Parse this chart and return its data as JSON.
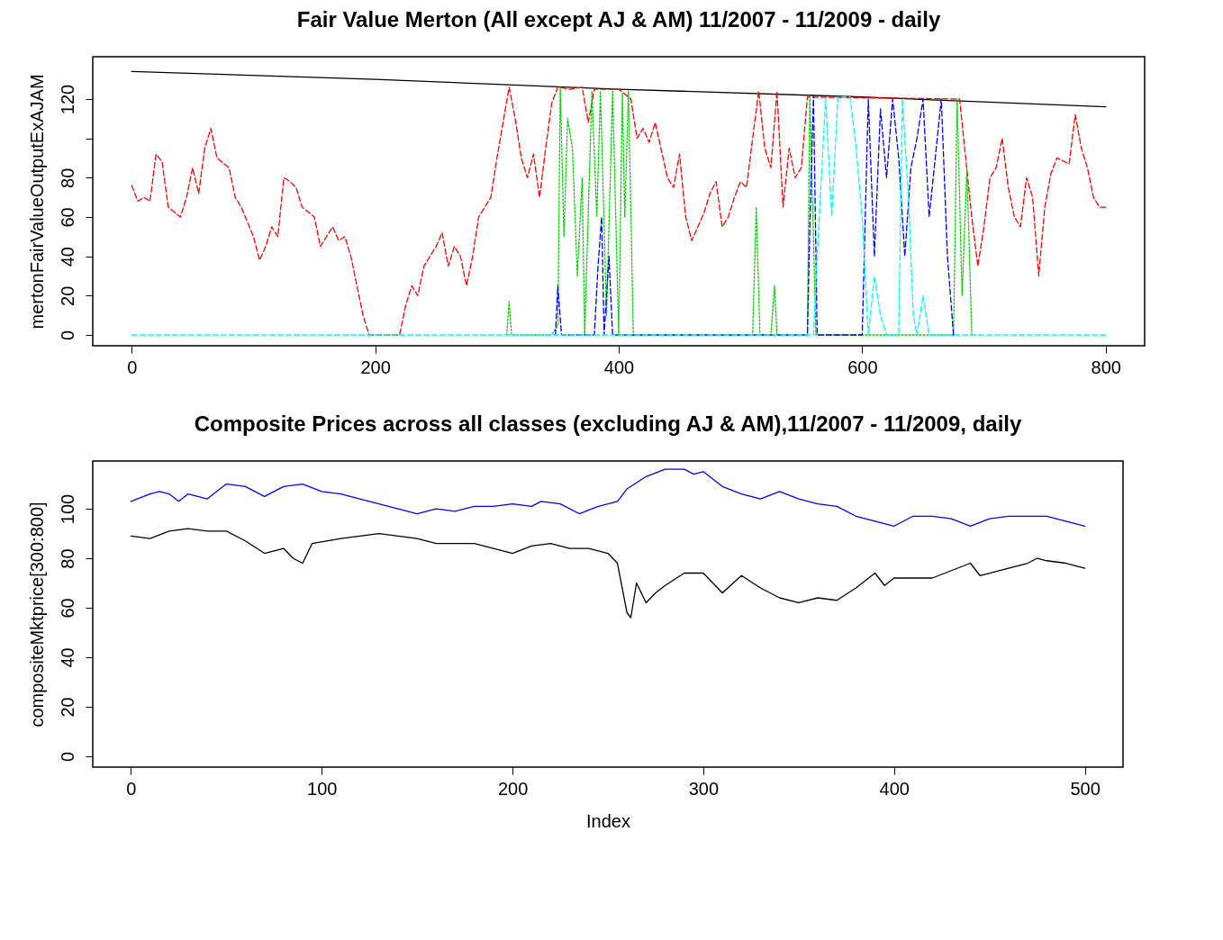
{
  "chart_data": [
    {
      "type": "line",
      "title": "Fair Value Merton (All except AJ & AM) 11/2007 - 11/2009 - daily",
      "ylabel": "mertonFairValueOutputExAJAM",
      "xlim": [
        -32,
        832
      ],
      "ylim": [
        -5.5,
        141.5
      ],
      "xticks": [
        0,
        200,
        400,
        600,
        800
      ],
      "yticks": [
        0,
        20,
        40,
        60,
        80,
        {
          "value": 100,
          "label": null
        },
        120
      ],
      "grid": false,
      "series": [
        {
          "color": "#000000",
          "line_style": "solid",
          "x": [
            0,
            200,
            400,
            600,
            800
          ],
          "values": [
            134,
            130,
            125,
            121,
            116
          ]
        },
        {
          "color": "#ff0000",
          "line_style": "dashed",
          "x": [
            0,
            5,
            10,
            15,
            20,
            25,
            30,
            40,
            45,
            50,
            55,
            60,
            65,
            70,
            80,
            85,
            90,
            100,
            105,
            110,
            115,
            120,
            125,
            130,
            135,
            140,
            150,
            155,
            160,
            165,
            170,
            175,
            180,
            185,
            190,
            195,
            220,
            225,
            230,
            235,
            240,
            250,
            255,
            260,
            265,
            270,
            275,
            280,
            285,
            290,
            295,
            300,
            310,
            315,
            320,
            325,
            330,
            335,
            340,
            345,
            350,
            360,
            370,
            375,
            380,
            400,
            410,
            415,
            420,
            425,
            430,
            440,
            445,
            450,
            455,
            460,
            465,
            470,
            475,
            480,
            485,
            490,
            495,
            500,
            505,
            510,
            515,
            520,
            525,
            530,
            535,
            540,
            545,
            550,
            555,
            680,
            685,
            690,
            695,
            700,
            705,
            710,
            715,
            720,
            725,
            730,
            735,
            740,
            745,
            750,
            755,
            760,
            770,
            775,
            780,
            785,
            790,
            795,
            800
          ],
          "values": [
            76,
            68,
            70,
            68,
            92,
            88,
            65,
            60,
            70,
            85,
            72,
            95,
            105,
            90,
            85,
            70,
            65,
            50,
            38,
            45,
            55,
            50,
            80,
            78,
            75,
            65,
            60,
            45,
            50,
            55,
            48,
            50,
            40,
            25,
            10,
            0,
            0,
            15,
            25,
            20,
            35,
            45,
            52,
            35,
            45,
            40,
            25,
            40,
            60,
            65,
            70,
            90,
            126,
            110,
            90,
            80,
            92,
            70,
            95,
            118,
            126,
            125,
            126,
            108,
            125,
            125,
            120,
            100,
            105,
            98,
            108,
            80,
            75,
            92,
            60,
            48,
            55,
            62,
            72,
            78,
            55,
            60,
            70,
            78,
            75,
            100,
            124,
            95,
            85,
            124,
            65,
            95,
            80,
            85,
            121,
            120,
            90,
            60,
            35,
            55,
            80,
            85,
            100,
            75,
            60,
            55,
            80,
            70,
            30,
            65,
            82,
            90,
            87,
            112,
            95,
            85,
            70,
            65,
            65
          ]
        },
        {
          "color": "#00cd00",
          "line_style": "dotted",
          "x": [
            308,
            310,
            312,
            345,
            350,
            352,
            355,
            358,
            362,
            366,
            370,
            372,
            378,
            382,
            385,
            390,
            395,
            400,
            403,
            405,
            408,
            412,
            510,
            513,
            516,
            525,
            528,
            530,
            555,
            557,
            562,
            675,
            678,
            682,
            686,
            690
          ],
          "values": [
            0,
            17,
            0,
            0,
            5,
            126,
            50,
            110,
            95,
            30,
            80,
            0,
            124,
            60,
            124,
            10,
            124,
            0,
            123,
            60,
            124,
            0,
            0,
            65,
            0,
            0,
            25,
            0,
            0,
            121,
            0,
            0,
            120,
            20,
            85,
            0
          ]
        },
        {
          "color": "#0000ff",
          "line_style": "dashed",
          "x": [
            348,
            350,
            353,
            380,
            383,
            386,
            388,
            392,
            395,
            555,
            557,
            560,
            563,
            600,
            605,
            610,
            615,
            620,
            625,
            630,
            635,
            640,
            645,
            650,
            655,
            660,
            665,
            670,
            675
          ],
          "values": [
            0,
            25,
            0,
            0,
            35,
            60,
            0,
            40,
            0,
            0,
            55,
            122,
            0,
            0,
            120,
            40,
            115,
            80,
            120,
            90,
            40,
            85,
            100,
            120,
            60,
            90,
            120,
            40,
            0
          ]
        },
        {
          "color": "#00ffff",
          "line_style": "dashed",
          "x": [
            0,
            560,
            563,
            570,
            575,
            580,
            590,
            595,
            600,
            605,
            610,
            615,
            620,
            630,
            633,
            638,
            642,
            645,
            650,
            655,
            800
          ],
          "values": [
            0,
            0,
            40,
            120,
            60,
            121,
            121,
            95,
            60,
            0,
            30,
            10,
            0,
            0,
            120,
            70,
            10,
            0,
            20,
            0,
            0
          ]
        }
      ]
    },
    {
      "type": "line",
      "title": "Composite Prices across all classes (excluding AJ & AM),11/2007 - 11/2009, daily",
      "xlabel": "Index",
      "ylabel": "compositeMktprice[300:800]",
      "xlim": [
        -20,
        520
      ],
      "ylim": [
        -4.4,
        119.3
      ],
      "xticks": [
        0,
        100,
        200,
        300,
        400,
        500
      ],
      "yticks": [
        0,
        20,
        40,
        60,
        80,
        100
      ],
      "grid": false,
      "series": [
        {
          "color": "#0000ff",
          "line_style": "solid",
          "x": [
            0,
            10,
            15,
            20,
            25,
            30,
            40,
            50,
            60,
            70,
            80,
            90,
            100,
            110,
            120,
            130,
            140,
            150,
            160,
            170,
            180,
            190,
            200,
            210,
            215,
            225,
            235,
            245,
            255,
            260,
            270,
            280,
            290,
            295,
            300,
            310,
            320,
            330,
            340,
            350,
            360,
            370,
            380,
            390,
            400,
            410,
            420,
            430,
            440,
            450,
            460,
            470,
            480,
            490,
            500
          ],
          "values": [
            103,
            106,
            107,
            106,
            103,
            106,
            104,
            110,
            109,
            105,
            109,
            110,
            107,
            106,
            104,
            102,
            100,
            98,
            100,
            99,
            101,
            101,
            102,
            101,
            103,
            102,
            98,
            101,
            103,
            108,
            113,
            116,
            116,
            114,
            115,
            109,
            106,
            104,
            107,
            104,
            102,
            101,
            97,
            95,
            93,
            97,
            97,
            96,
            93,
            96,
            97,
            97,
            97,
            95,
            93
          ]
        },
        {
          "color": "#000000",
          "line_style": "solid",
          "x": [
            0,
            10,
            20,
            30,
            40,
            50,
            60,
            70,
            80,
            85,
            90,
            95,
            110,
            120,
            130,
            150,
            160,
            180,
            190,
            200,
            210,
            220,
            230,
            240,
            250,
            255,
            260,
            262,
            265,
            270,
            275,
            280,
            290,
            300,
            305,
            310,
            320,
            330,
            340,
            350,
            360,
            370,
            380,
            390,
            395,
            400,
            420,
            430,
            440,
            445,
            460,
            470,
            475,
            480,
            490,
            495,
            500
          ],
          "values": [
            89,
            88,
            91,
            92,
            91,
            91,
            87,
            82,
            84,
            80,
            78,
            86,
            88,
            89,
            90,
            88,
            86,
            86,
            84,
            82,
            85,
            86,
            84,
            84,
            82,
            78,
            58,
            56,
            70,
            62,
            66,
            69,
            74,
            74,
            70,
            66,
            73,
            68,
            64,
            62,
            64,
            63,
            68,
            74,
            69,
            72,
            72,
            75,
            78,
            73,
            76,
            78,
            80,
            79,
            78,
            77,
            76
          ]
        }
      ]
    }
  ]
}
